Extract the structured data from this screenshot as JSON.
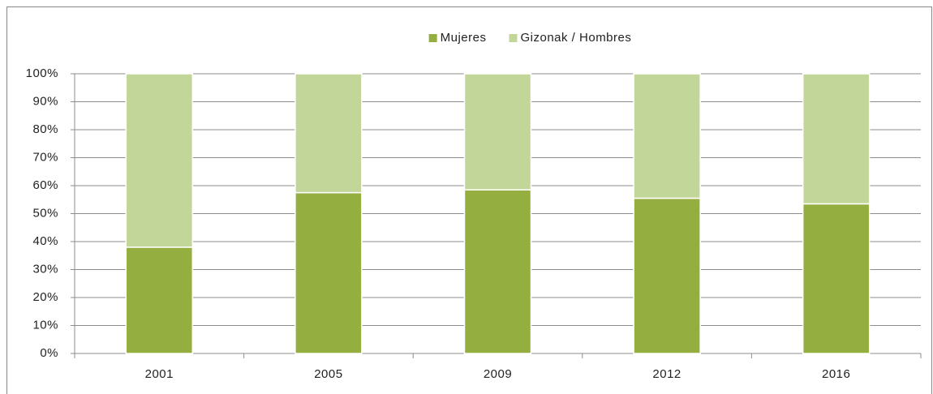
{
  "chart_data": {
    "type": "stacked_bar",
    "categories": [
      "2001",
      "2005",
      "2009",
      "2012",
      "2016"
    ],
    "series": [
      {
        "name": "Mujeres",
        "color": "#94ae3f",
        "values": [
          38,
          57.5,
          58.5,
          55.5,
          53.5
        ]
      },
      {
        "name": "Gizonak / Hombres",
        "color": "#c2d69a",
        "values": [
          62,
          42.5,
          41.5,
          44.5,
          46.5
        ]
      }
    ],
    "ylim": [
      0,
      100
    ],
    "yticks": [
      {
        "value": 0,
        "label": "0%"
      },
      {
        "value": 10,
        "label": "10%"
      },
      {
        "value": 20,
        "label": "20%"
      },
      {
        "value": 30,
        "label": "30%"
      },
      {
        "value": 40,
        "label": "40%"
      },
      {
        "value": 50,
        "label": "50%"
      },
      {
        "value": 60,
        "label": "60%"
      },
      {
        "value": 70,
        "label": "70%"
      },
      {
        "value": 80,
        "label": "80%"
      },
      {
        "value": 90,
        "label": "90%"
      },
      {
        "value": 100,
        "label": "100%"
      }
    ],
    "grid": true,
    "legend": "top"
  }
}
